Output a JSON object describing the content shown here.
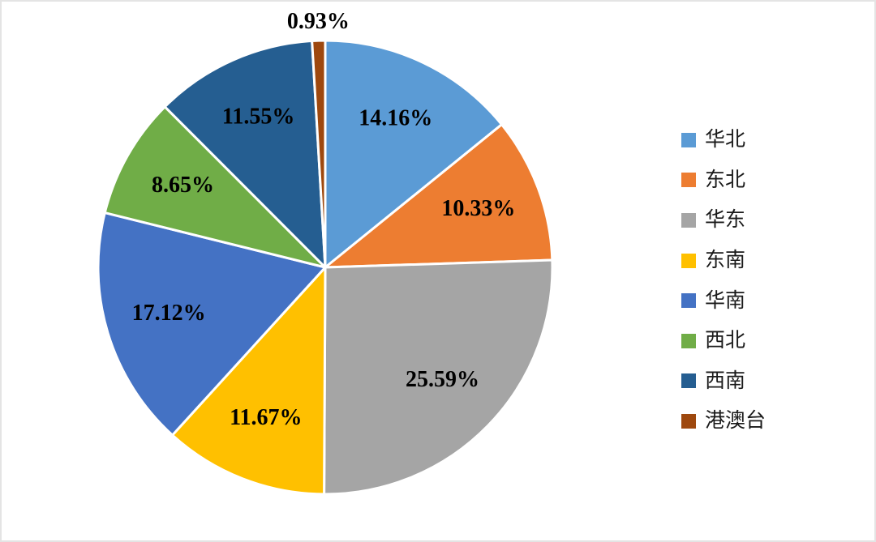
{
  "chart_data": {
    "type": "pie",
    "categories": [
      "华北",
      "东北",
      "华东",
      "东南",
      "华南",
      "西北",
      "西南",
      "港澳台"
    ],
    "values": [
      14.16,
      10.33,
      25.59,
      11.67,
      17.12,
      8.65,
      11.55,
      0.93
    ],
    "data_labels": [
      "14.16%",
      "10.33%",
      "25.59%",
      "11.67%",
      "17.12%",
      "8.65%",
      "11.55%",
      "0.93%"
    ],
    "colors": [
      "#5B9BD5",
      "#ED7D31",
      "#A5A5A5",
      "#FFC000",
      "#4472C4",
      "#70AD47",
      "#255E91",
      "#9E480E"
    ],
    "start_angle_deg": 0,
    "direction": "clockwise",
    "legend_position": "right",
    "outside_label_indices": [
      7
    ],
    "label_color": "#000000",
    "slice_border_color": "#FFFFFF"
  },
  "legend": {
    "items": [
      {
        "label": "华北",
        "color": "#5B9BD5"
      },
      {
        "label": "东北",
        "color": "#ED7D31"
      },
      {
        "label": "华东",
        "color": "#A5A5A5"
      },
      {
        "label": "东南",
        "color": "#FFC000"
      },
      {
        "label": "华南",
        "color": "#4472C4"
      },
      {
        "label": "西北",
        "color": "#70AD47"
      },
      {
        "label": "西南",
        "color": "#255E91"
      },
      {
        "label": "港澳台",
        "color": "#9E480E"
      }
    ]
  }
}
